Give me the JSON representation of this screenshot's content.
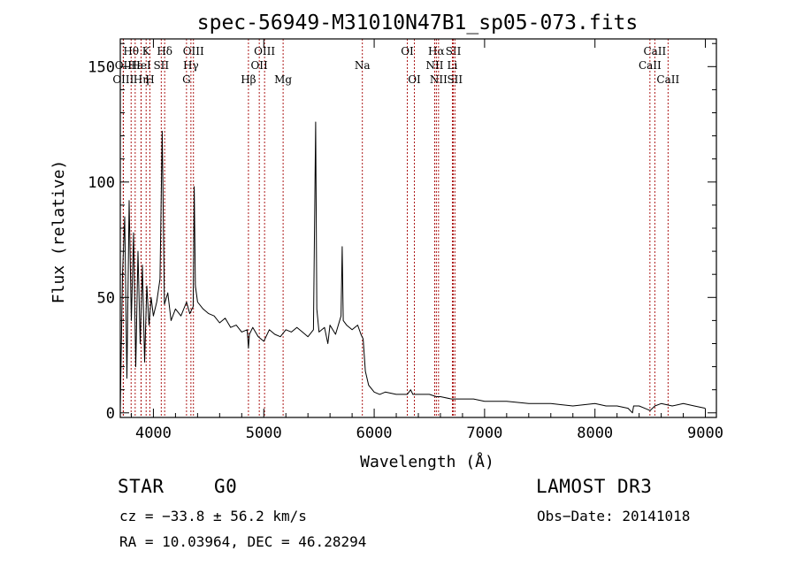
{
  "chart_data": {
    "type": "line",
    "title": "spec-56949-M31010N47B1_sp05-073.fits",
    "xlabel": "Wavelength (Å)",
    "ylabel": "Flux (relative)",
    "xlim": [
      3700,
      9100
    ],
    "ylim": [
      -2,
      162
    ],
    "xticks": [
      4000,
      5000,
      6000,
      7000,
      8000,
      9000
    ],
    "xtick_labels": [
      "4000",
      "5000",
      "6000",
      "7000",
      "8000",
      "9000"
    ],
    "yticks": [
      0,
      50,
      100,
      150
    ],
    "ytick_labels": [
      "0",
      "50",
      "100",
      "150"
    ],
    "grid": false,
    "spectrum": {
      "name": "flux",
      "x": [
        3700,
        3720,
        3740,
        3760,
        3780,
        3800,
        3820,
        3840,
        3860,
        3880,
        3900,
        3920,
        3940,
        3960,
        3980,
        4000,
        4030,
        4060,
        4080,
        4100,
        4130,
        4160,
        4200,
        4250,
        4300,
        4330,
        4360,
        4370,
        4380,
        4400,
        4450,
        4500,
        4550,
        4600,
        4650,
        4700,
        4750,
        4800,
        4850,
        4861,
        4870,
        4900,
        4950,
        5000,
        5050,
        5100,
        5150,
        5200,
        5250,
        5300,
        5350,
        5400,
        5450,
        5470,
        5480,
        5500,
        5550,
        5580,
        5600,
        5650,
        5700,
        5710,
        5720,
        5750,
        5800,
        5850,
        5880,
        5900,
        5920,
        5950,
        6000,
        6050,
        6100,
        6200,
        6300,
        6330,
        6350,
        6400,
        6500,
        6563,
        6600,
        6700,
        6800,
        6900,
        7000,
        7200,
        7400,
        7600,
        7800,
        8000,
        8100,
        8200,
        8300,
        8340,
        8350,
        8400,
        8450,
        8500,
        8542,
        8600,
        8700,
        8800,
        8900,
        9000
      ],
      "y": [
        2,
        60,
        85,
        15,
        92,
        40,
        78,
        20,
        70,
        30,
        64,
        22,
        55,
        38,
        50,
        42,
        48,
        58,
        122,
        47,
        52,
        40,
        45,
        42,
        48,
        43,
        46,
        98,
        55,
        48,
        45,
        43,
        42,
        39,
        41,
        37,
        38,
        35,
        36,
        28,
        34,
        37,
        33,
        31,
        36,
        34,
        33,
        36,
        35,
        37,
        35,
        33,
        36,
        126,
        45,
        35,
        37,
        30,
        38,
        34,
        42,
        72,
        40,
        38,
        36,
        38,
        34,
        32,
        18,
        12,
        9,
        8,
        9,
        8,
        8,
        10,
        8,
        8,
        8,
        7,
        7,
        6,
        6,
        6,
        5,
        5,
        4,
        4,
        3,
        4,
        3,
        3,
        2,
        0,
        3,
        3,
        2,
        1,
        3,
        4,
        3,
        4,
        3,
        2
      ]
    },
    "line_marks": [
      {
        "label": "Hθ",
        "wave": 3798,
        "row": 0
      },
      {
        "label": "K",
        "wave": 3934,
        "row": 0
      },
      {
        "label": "Hδ",
        "wave": 4102,
        "row": 0
      },
      {
        "label": "OIII",
        "wave": 4363,
        "row": 0
      },
      {
        "label": "OIII",
        "wave": 5007,
        "row": 0
      },
      {
        "label": "OI",
        "wave": 6300,
        "row": 0
      },
      {
        "label": "Hα",
        "wave": 6563,
        "row": 0
      },
      {
        "label": "SII",
        "wave": 6717,
        "row": 0
      },
      {
        "label": "CaII",
        "wave": 8542,
        "row": 0
      },
      {
        "label": "OII",
        "wave": 3727,
        "row": 1
      },
      {
        "label": "Hε",
        "wave": 3835,
        "row": 1
      },
      {
        "label": "HeI",
        "wave": 3889,
        "row": 1
      },
      {
        "label": "SII",
        "wave": 4071,
        "row": 1
      },
      {
        "label": "Hγ",
        "wave": 4340,
        "row": 1
      },
      {
        "label": "OII",
        "wave": 4959,
        "row": 1
      },
      {
        "label": "Na",
        "wave": 5893,
        "row": 1
      },
      {
        "label": "NII",
        "wave": 6548,
        "row": 1
      },
      {
        "label": "Li",
        "wave": 6708,
        "row": 1
      },
      {
        "label": "CaII",
        "wave": 8498,
        "row": 1
      },
      {
        "label": "OIII",
        "wave": 3727,
        "row": 2
      },
      {
        "label": "Hη",
        "wave": 3889,
        "row": 2
      },
      {
        "label": "H",
        "wave": 3968,
        "row": 2
      },
      {
        "label": "G",
        "wave": 4300,
        "row": 2
      },
      {
        "label": "Hβ",
        "wave": 4861,
        "row": 2
      },
      {
        "label": "Mg",
        "wave": 5175,
        "row": 2
      },
      {
        "label": "OI",
        "wave": 6364,
        "row": 2
      },
      {
        "label": "NII",
        "wave": 6583,
        "row": 2
      },
      {
        "label": "SII",
        "wave": 6731,
        "row": 2
      },
      {
        "label": "CaII",
        "wave": 8662,
        "row": 2
      }
    ],
    "line_mark_color": "#a40000"
  },
  "footer": {
    "object_type": "STAR",
    "subclass": "G0",
    "survey": "LAMOST DR3",
    "redshift_text": "cz = −33.8 ± 56.2 km/s",
    "obs_date_text": "Obs−Date: 20141018",
    "coords_text": "RA =  10.03964, DEC =  46.28294"
  }
}
